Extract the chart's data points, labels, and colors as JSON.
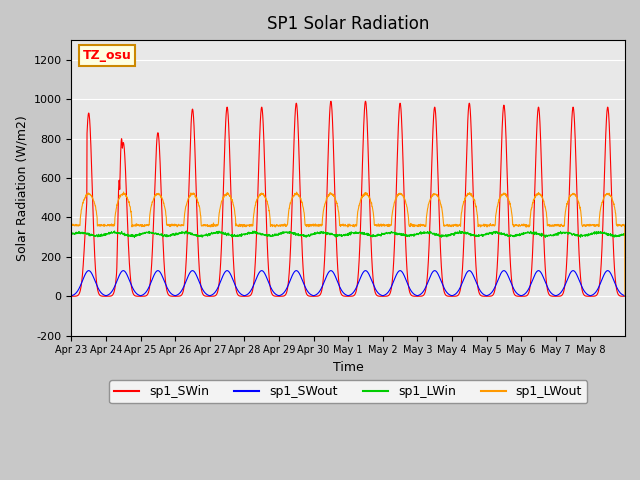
{
  "title": "SP1 Solar Radiation",
  "xlabel": "Time",
  "ylabel": "Solar Radiation (W/m2)",
  "ylim": [
    -200,
    1300
  ],
  "yticks": [
    -200,
    0,
    200,
    400,
    600,
    800,
    1000,
    1200
  ],
  "x_labels": [
    "Apr 23",
    "Apr 24",
    "Apr 25",
    "Apr 26",
    "Apr 27",
    "Apr 28",
    "Apr 29",
    "Apr 30",
    "May 1",
    "May 2",
    "May 3",
    "May 4",
    "May 5",
    "May 6",
    "May 7",
    "May 8"
  ],
  "colors": {
    "SWin": "#ff0000",
    "SWout": "#0000ff",
    "LWin": "#00cc00",
    "LWout": "#ff9900"
  },
  "legend_labels": [
    "sp1_SWin",
    "sp1_SWout",
    "sp1_LWin",
    "sp1_LWout"
  ],
  "tz_label": "TZ_osu",
  "n_days": 16,
  "points_per_day": 144
}
